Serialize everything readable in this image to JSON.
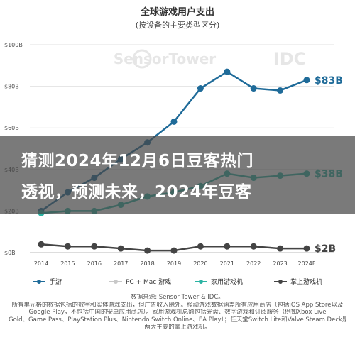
{
  "header": {
    "title": "全球游戏用户支出",
    "subtitle": "(按设备的主要类型区分)"
  },
  "watermark": {
    "left": "SensorTower",
    "right": "IDC"
  },
  "banner": {
    "line1": "猜测2024年12月6日豆客热门",
    "line2": "透视，预测未来，2024年豆客"
  },
  "note_lines": [
    "数据来源: Sensor Tower & IDC。",
    "所有单元格的数据包括的数字和实体游戏支出，但广告收入除外。移动游戏数据涵盖所有应用商店（包括iOS App Store以及",
    "Google Play，不包括中国的安卓应用商店）。家用游戏机总额包括光盘、数字游戏和订阅服务（例如Xbox Live",
    "Gold、Game Pass、PlayStation Plus、Nintendo Switch Online、EA Play）；任天堂Switch Lite和Valve Steam Deck是",
    "两大主要的掌上游戏机。"
  ],
  "chart_data": {
    "type": "line",
    "title": "全球游戏用户支出",
    "subtitle": "(按设备的主要类型区分)",
    "categories": [
      "2014",
      "2015",
      "2016",
      "2017",
      "2018",
      "2019",
      "2020",
      "2021",
      "2022",
      "2023",
      "2024F"
    ],
    "y_tick_labels": [
      "$0B",
      "$20B",
      "$40B",
      "$60B",
      "$80B",
      "$100B"
    ],
    "ylim": [
      0,
      100
    ],
    "grid": true,
    "legend_position": "bottom",
    "series": [
      {
        "name": "手游",
        "color": "#1f6b99",
        "values": [
          20,
          29,
          36,
          45,
          53,
          63,
          79,
          87,
          79,
          78,
          83
        ]
      },
      {
        "name": "PC + Mac 游戏",
        "color": "#c8c8c8",
        "values": [
          null,
          null,
          null,
          null,
          null,
          null,
          null,
          null,
          null,
          null,
          null
        ]
      },
      {
        "name": "家用游戏机",
        "color": "#2bb3a3",
        "values": [
          19,
          20,
          20,
          23,
          27,
          29,
          32,
          38,
          36,
          37,
          38
        ]
      },
      {
        "name": "掌上游戏机",
        "color": "#444444",
        "values": [
          4,
          3,
          3,
          2,
          1,
          1,
          3,
          3,
          3,
          2,
          2
        ]
      }
    ],
    "end_labels": [
      {
        "series": "手游",
        "text": "$83B"
      },
      {
        "series": "家用游戏机",
        "text": "$38B"
      },
      {
        "series": "掌上游戏机",
        "text": "$2B"
      }
    ]
  }
}
